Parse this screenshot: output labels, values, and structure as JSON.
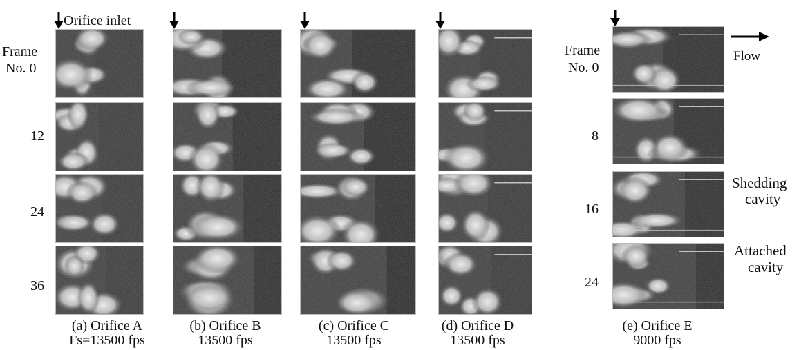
{
  "annotations": {
    "orifice_inlet": "Orifice inlet",
    "flow": "Flow",
    "shedding_cavity_line1": "Shedding",
    "shedding_cavity_line2": "cavity",
    "attached_cavity_line1": "Attached",
    "attached_cavity_line2": "cavity"
  },
  "left_frame_labels": {
    "frame_word": "Frame",
    "frame_no": "No.  0",
    "f12": "12",
    "f24": "24",
    "f36": "36"
  },
  "right_frame_labels": {
    "frame_word": "Frame",
    "frame_no": "No.  0",
    "f8": "8",
    "f16": "16",
    "f24": "24"
  },
  "panels": [
    {
      "caption": "(a) Orifice A",
      "rate": "Fs=13500 fps"
    },
    {
      "caption": "(b) Orifice B",
      "rate": "13500 fps"
    },
    {
      "caption": "(c) Orifice C",
      "rate": "13500 fps"
    },
    {
      "caption": "(d) Orifice D",
      "rate": "13500 fps"
    },
    {
      "caption": "(e) Orifice E",
      "rate": "9000 fps"
    }
  ]
}
